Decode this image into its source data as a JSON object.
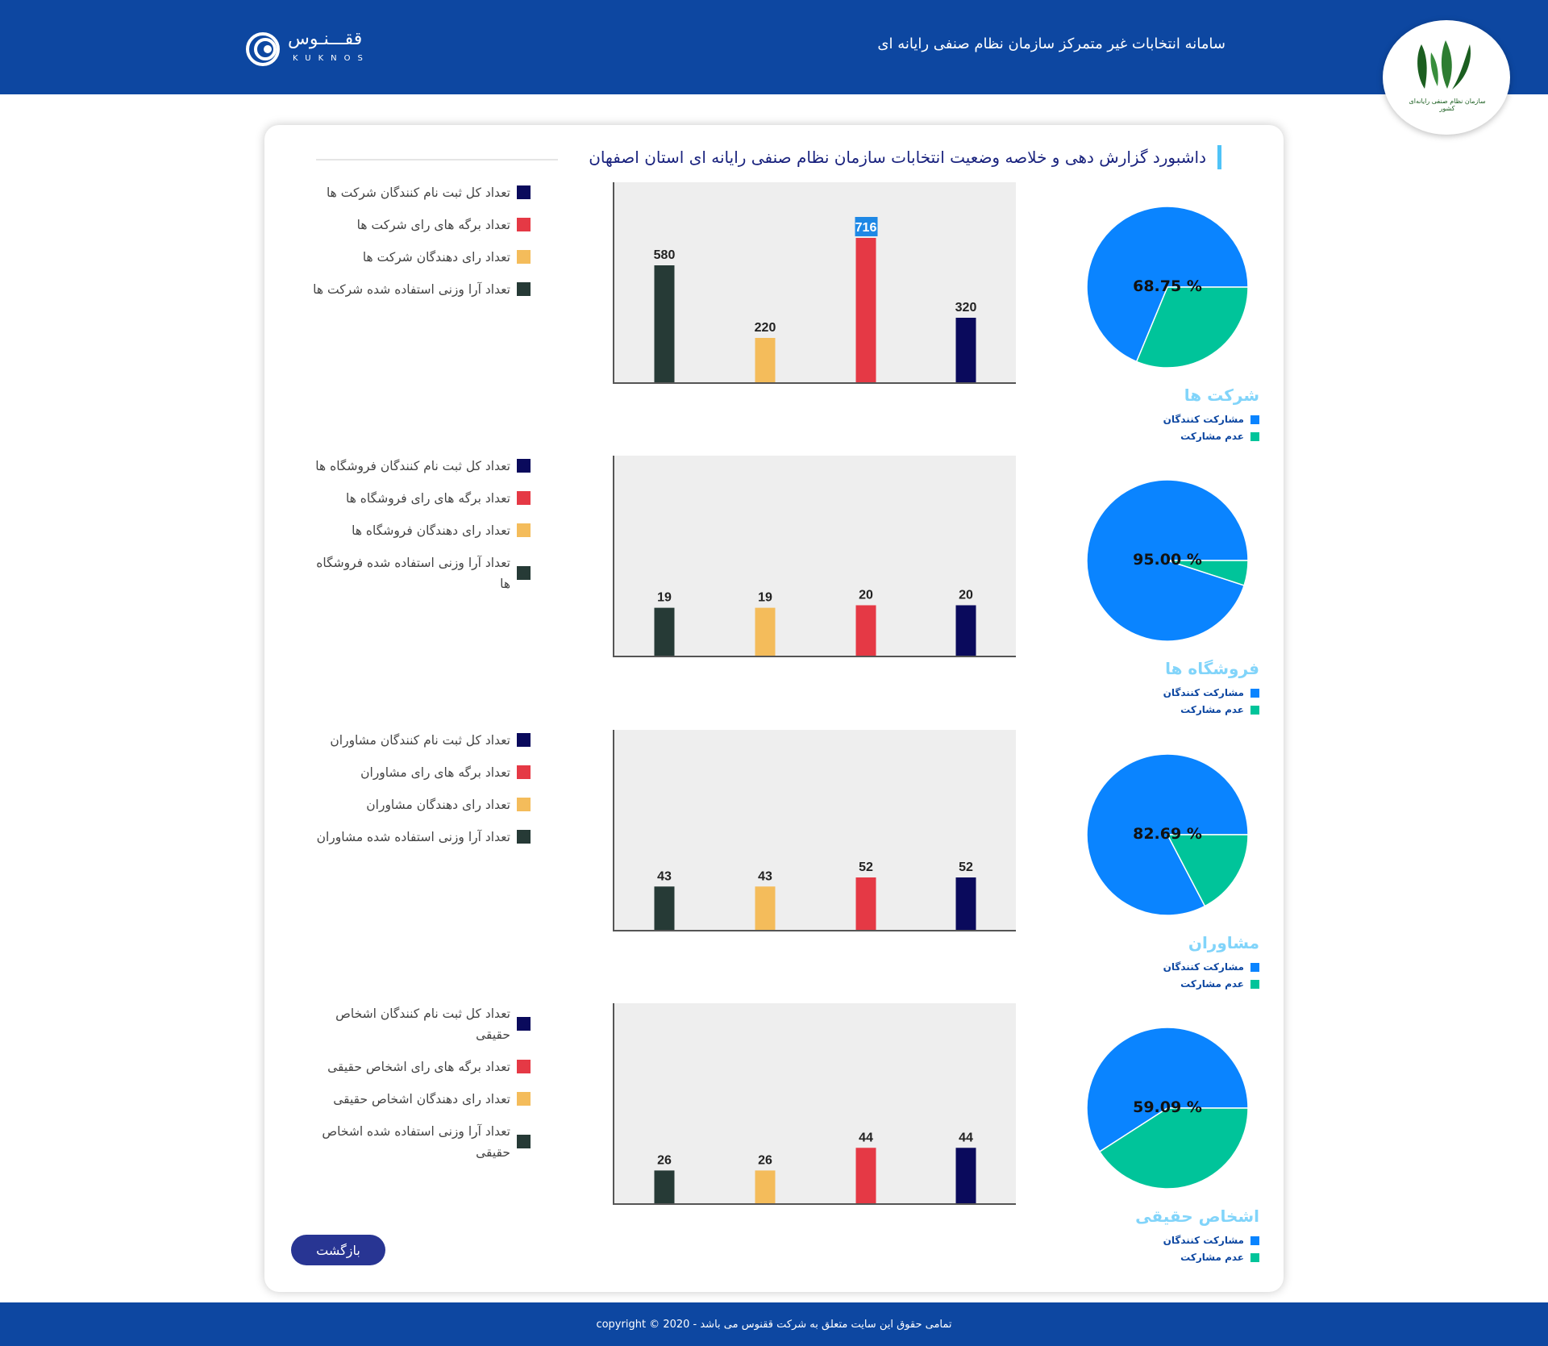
{
  "header": {
    "title": "سامانه انتخابات غیر متمرکز سازمان نظام صنفی رایانه ای",
    "kuknos_name": "ققـــنـوس",
    "kuknos_latin": "KUKNOS",
    "org_logo_text": "سازمان نظام صنفی رایانه‌ای کشور"
  },
  "dashboard": {
    "title": "داشبورد گزارش دهی و خلاصه وضعیت انتخابات سازمان نظام صنفی رایانه ای استان اصفهان"
  },
  "colors": {
    "registered": "#0a0a5c",
    "ballots": "#e53945",
    "voters": "#f4bc5b",
    "weighted": "#263a36",
    "participants": "#0a84ff",
    "non_participants": "#00c49a",
    "header_bg": "#0d47a1"
  },
  "pie_legend": {
    "participants": "مشارکت کنندگان",
    "non_participants": "عدم مشارکت"
  },
  "sections": [
    {
      "name": "شرکت ها",
      "legend": [
        "تعداد کل ثبت نام کنندگان شرکت ها",
        "تعداد برگه های رای شرکت ها",
        "تعداد رای دهندگان شرکت ها",
        "تعداد آرا وزنی استفاده شده شرکت ها"
      ],
      "pie_label": "68.75 %",
      "pie_value": 68.75,
      "bars": [
        580,
        220,
        716,
        320
      ],
      "bar_labels": [
        "580",
        "220",
        "716",
        "320"
      ],
      "ymax": 1000
    },
    {
      "name": "فروشگاه ها",
      "legend": [
        "تعداد کل ثبت نام کنندگان فروشگاه ها",
        "تعداد برگه های رای فروشگاه ها",
        "تعداد رای دهندگان فروشگاه ها",
        "تعداد آرا وزنی استفاده شده فروشگاه ها"
      ],
      "pie_label": "95.00 %",
      "pie_value": 95.0,
      "bars": [
        19,
        19,
        20,
        20
      ],
      "bar_labels": [
        "19",
        "19",
        "20",
        "20"
      ],
      "ymax": 80
    },
    {
      "name": "مشاوران",
      "legend": [
        "تعداد کل ثبت نام کنندگان مشاوران",
        "تعداد برگه های رای مشاوران",
        "تعداد رای دهندگان مشاوران",
        "تعداد آرا وزنی استفاده شده مشاوران"
      ],
      "pie_label": "82.69 %",
      "pie_value": 82.69,
      "bars": [
        43,
        43,
        52,
        52
      ],
      "bar_labels": [
        "43",
        "43",
        "52",
        "52"
      ],
      "ymax": 200
    },
    {
      "name": "اشخاص حقیقی",
      "legend": [
        "تعداد کل ثبت نام کنندگان اشخاص حقیقی",
        "تعداد برگه های رای اشخاص حقیقی",
        "تعداد رای دهندگان اشخاص حقیقی",
        "تعداد آرا وزنی استفاده شده اشخاص حقیقی"
      ],
      "pie_label": "59.09 %",
      "pie_value": 59.09,
      "bars": [
        26,
        26,
        44,
        44
      ],
      "bar_labels": [
        "26",
        "26",
        "44",
        "44"
      ],
      "ymax": 160
    }
  ],
  "chart_data": [
    {
      "type": "bar",
      "categories": [
        "",
        "",
        "",
        ""
      ],
      "values": [
        580,
        220,
        716,
        320
      ],
      "title": "",
      "xlabel": "",
      "ylabel": ""
    },
    {
      "type": "bar",
      "categories": [
        "",
        "",
        "",
        ""
      ],
      "values": [
        19,
        19,
        20,
        20
      ],
      "title": "",
      "xlabel": "",
      "ylabel": ""
    },
    {
      "type": "bar",
      "categories": [
        "",
        "",
        "",
        ""
      ],
      "values": [
        43,
        43,
        52,
        52
      ],
      "title": "",
      "xlabel": "",
      "ylabel": ""
    },
    {
      "type": "bar",
      "categories": [
        "",
        "",
        "",
        ""
      ],
      "values": [
        26,
        26,
        44,
        44
      ],
      "title": "",
      "xlabel": "",
      "ylabel": ""
    }
  ],
  "buttons": {
    "back": "بازگشت"
  },
  "footer": {
    "text": "تمامی حقوق این سایت متعلق به شرکت ققنوس می باشد - 2020 © copyright"
  }
}
